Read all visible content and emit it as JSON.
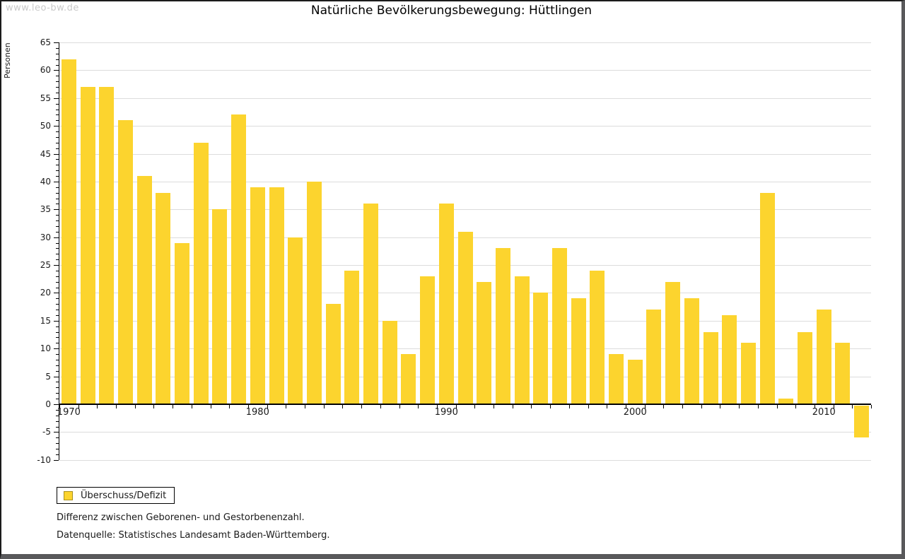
{
  "watermark": "www.leo-bw.de",
  "title": "Natürliche Bevölkerungsbewegung: Hüttlingen",
  "legend": {
    "label": "Überschuss/Defizit"
  },
  "footnotes": [
    "Differenz zwischen Geborenen- und Gestorbenenzahl.",
    "Datenquelle: Statistisches Landesamt Baden-Württemberg."
  ],
  "colors": {
    "bar": "#FCD42E",
    "bar_swatch_border": "#A9901C",
    "grid": "#DCDCDC",
    "axis": "#000000",
    "watermark": "#C9C9C9"
  },
  "chart_data": {
    "type": "bar",
    "title": "Natürliche Bevölkerungsbewegung: Hüttlingen",
    "xlabel": "",
    "ylabel": "Personen",
    "ylim": [
      -10,
      65
    ],
    "ytick_major_step": 5,
    "ytick_minor_step": 1,
    "grid": true,
    "legend_position": "bottom-left",
    "series_name": "Überschuss/Defizit",
    "xtick_labeled_years": [
      1970,
      1980,
      1990,
      2000,
      2010
    ],
    "x": [
      1970,
      1971,
      1972,
      1973,
      1974,
      1975,
      1976,
      1977,
      1978,
      1979,
      1980,
      1981,
      1982,
      1983,
      1984,
      1985,
      1986,
      1987,
      1988,
      1989,
      1990,
      1991,
      1992,
      1993,
      1994,
      1995,
      1996,
      1997,
      1998,
      1999,
      2000,
      2001,
      2002,
      2003,
      2004,
      2005,
      2006,
      2007,
      2008,
      2009,
      2010,
      2011,
      2012
    ],
    "values": [
      62,
      57,
      57,
      51,
      41,
      38,
      29,
      47,
      35,
      52,
      39,
      39,
      30,
      40,
      18,
      24,
      36,
      15,
      9,
      23,
      36,
      31,
      22,
      28,
      23,
      20,
      28,
      19,
      24,
      9,
      8,
      17,
      22,
      19,
      13,
      16,
      11,
      38,
      1,
      13,
      17,
      11,
      -6
    ]
  }
}
